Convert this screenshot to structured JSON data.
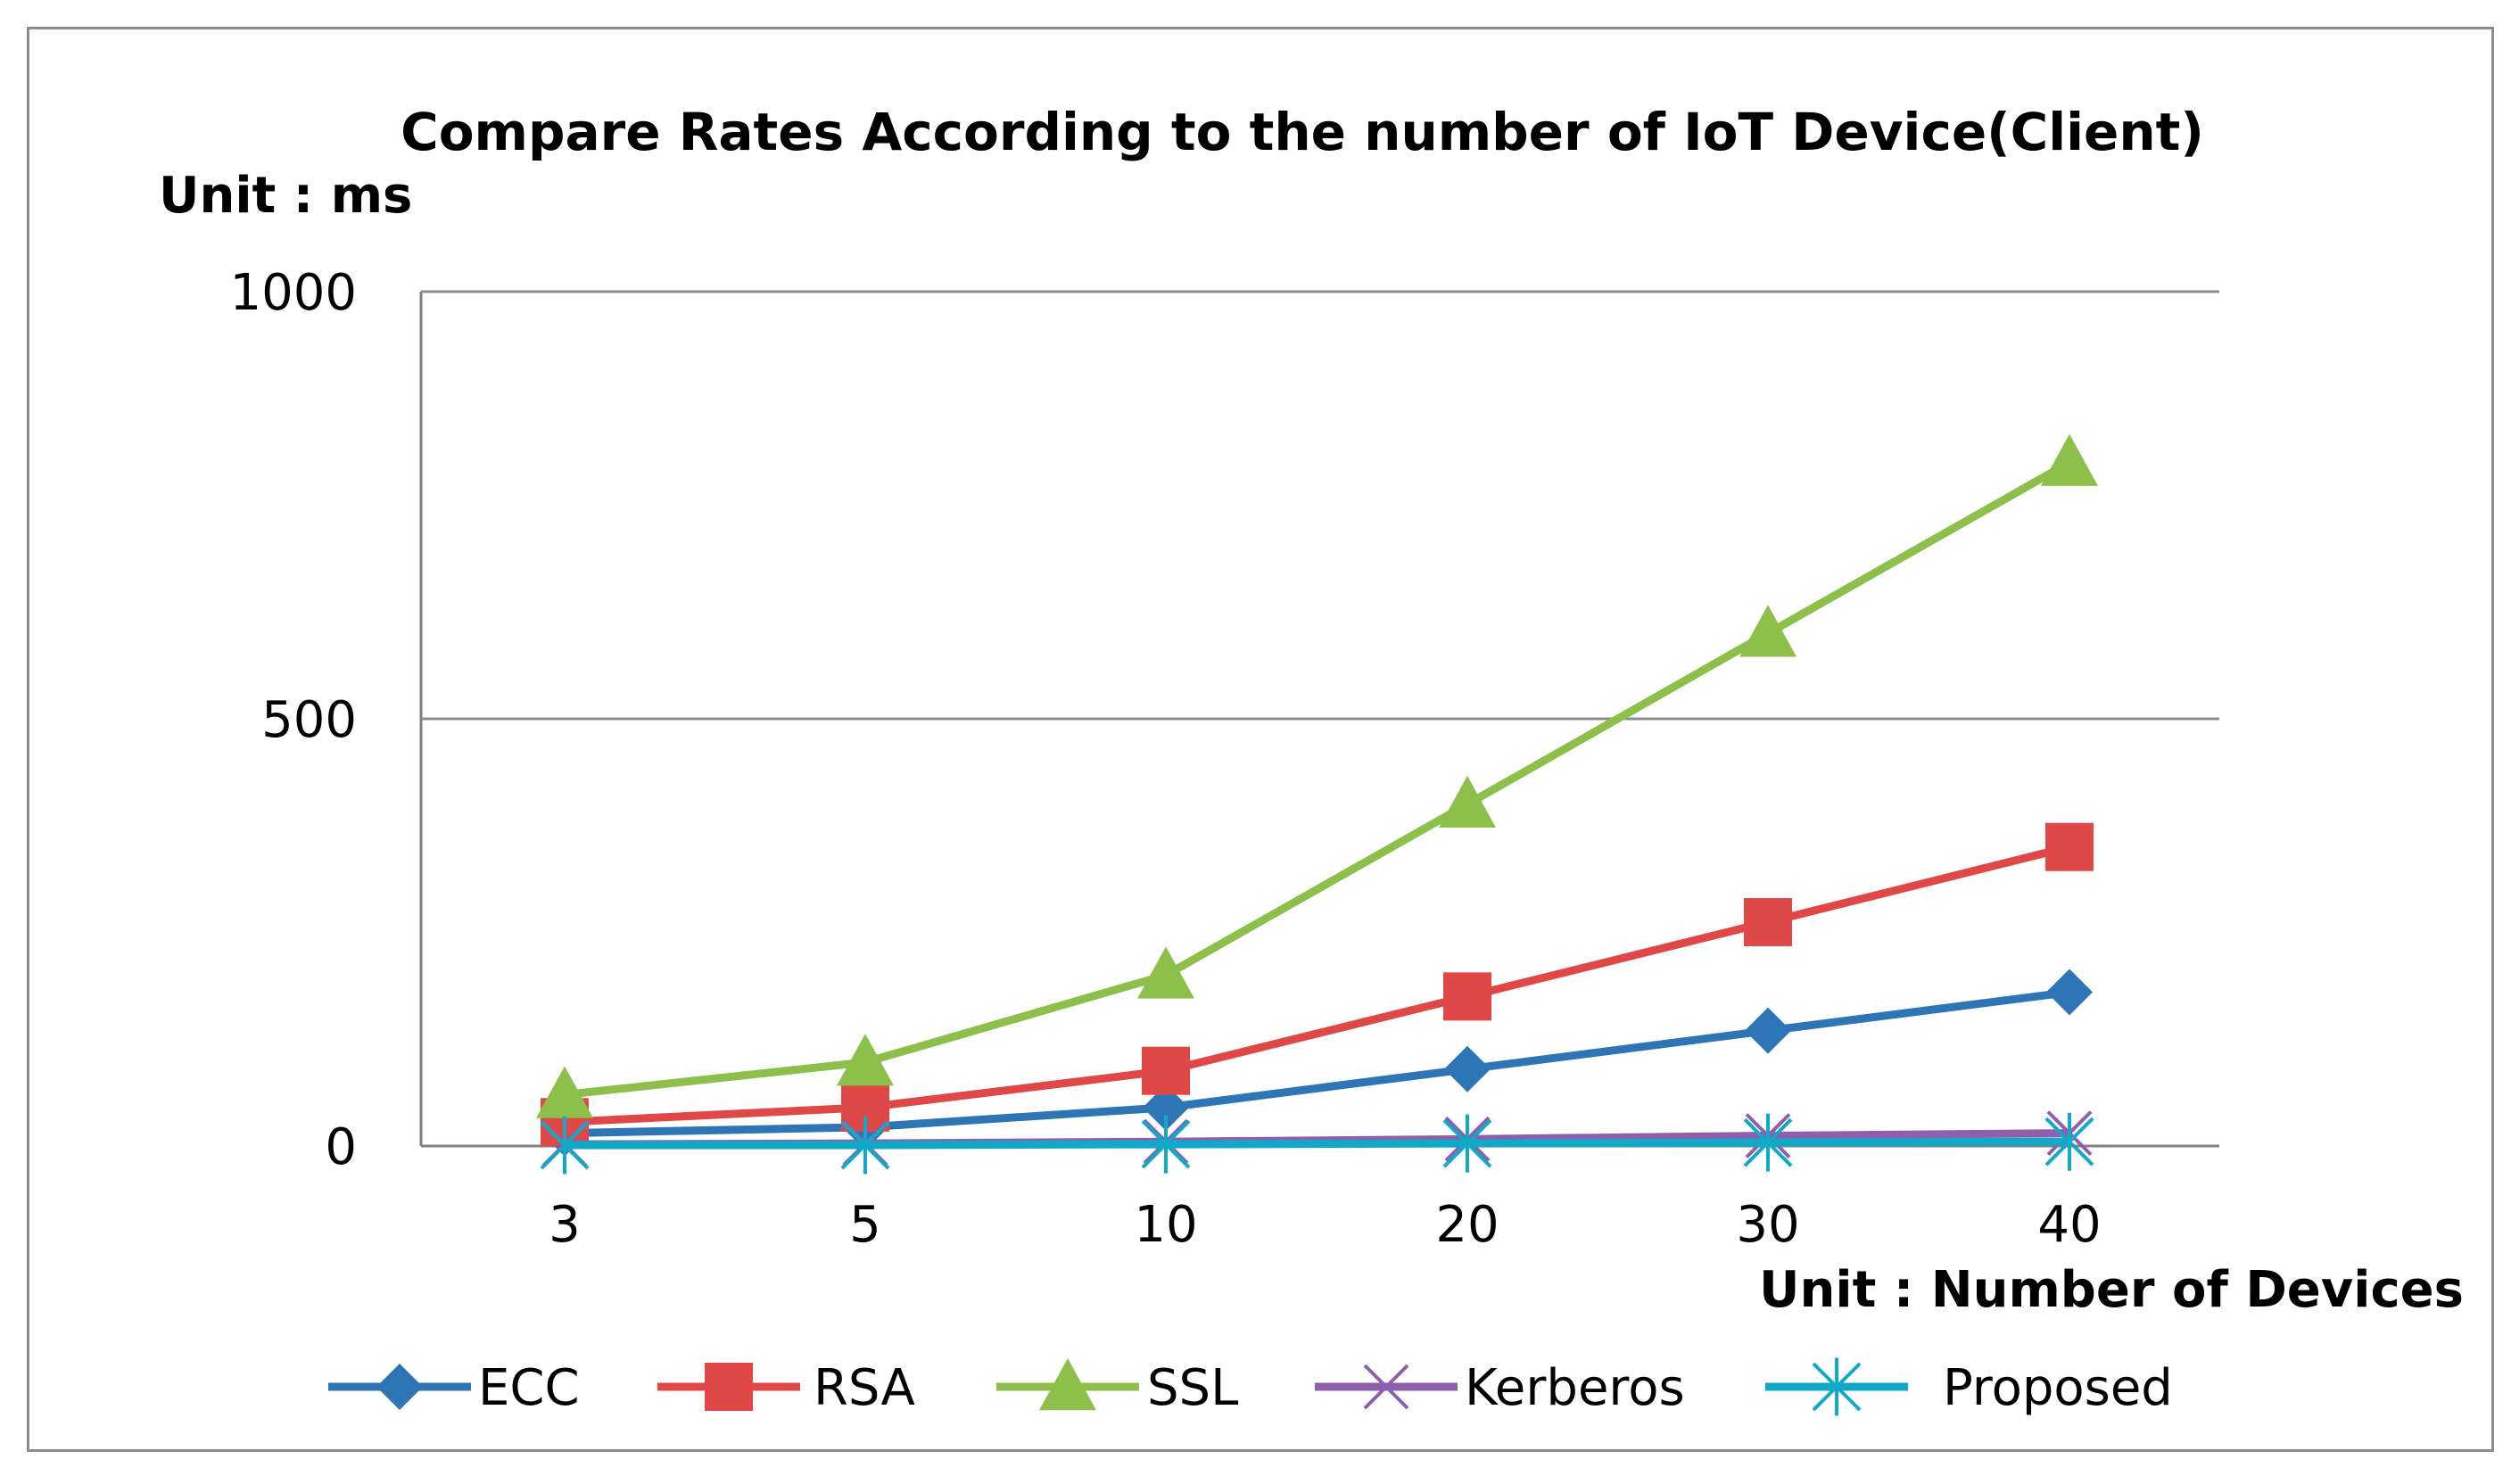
{
  "chart_data": {
    "type": "line",
    "title": "Compare Rates According  to the number of IoT Device(Client)",
    "ylabel": "Unit : ms",
    "xlabel": "Unit : Number of Devices",
    "categories": [
      "3",
      "5",
      "10",
      "20",
      "30",
      "40"
    ],
    "ylim": [
      0,
      1000
    ],
    "yticks": [
      0,
      500,
      1000
    ],
    "grid": true,
    "legend_position": "bottom",
    "series": [
      {
        "name": "ECC",
        "color": "#2e75b6",
        "marker": "diamond",
        "values": [
          15,
          22,
          45,
          90,
          135,
          180
        ]
      },
      {
        "name": "RSA",
        "color": "#e04848",
        "marker": "square",
        "values": [
          28,
          45,
          88,
          175,
          262,
          350
        ]
      },
      {
        "name": "SSL",
        "color": "#8cc04a",
        "marker": "triangle",
        "values": [
          60,
          98,
          200,
          400,
          600,
          800
        ]
      },
      {
        "name": "Kerberos",
        "color": "#8e5fad",
        "marker": "x",
        "values": [
          2,
          3,
          5,
          8,
          12,
          15
        ]
      },
      {
        "name": "Proposed",
        "color": "#12a8c8",
        "marker": "star",
        "values": [
          1,
          1,
          2,
          3,
          4,
          5
        ]
      }
    ]
  }
}
